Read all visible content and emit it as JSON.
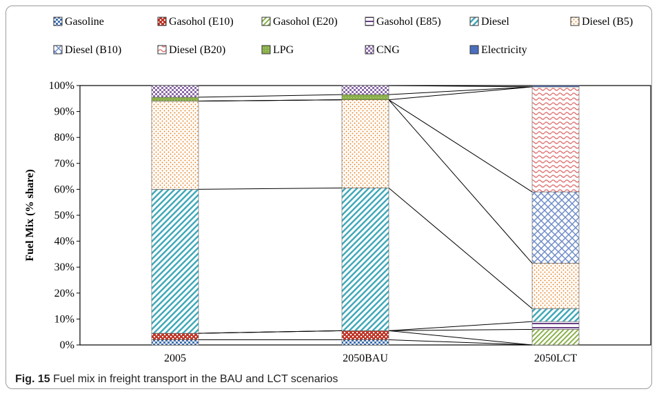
{
  "caption": {
    "fig_label": "Fig. 15",
    "text": "Fuel mix in freight transport in the BAU and LCT scenarios"
  },
  "chart_data": {
    "type": "bar",
    "stacked": true,
    "percent": true,
    "categories": [
      "2005",
      "2050BAU",
      "2050LCT"
    ],
    "ylabel": "Fuel Mix (% share)",
    "ylim": [
      0,
      100
    ],
    "yticks": [
      "0%",
      "10%",
      "20%",
      "30%",
      "40%",
      "50%",
      "60%",
      "70%",
      "80%",
      "90%",
      "100%"
    ],
    "grid": false,
    "connector_lines": true,
    "legend_position": "top",
    "series": [
      {
        "name": "Gasoline",
        "values": [
          2,
          2,
          0
        ],
        "color": "#3e6fb0",
        "pattern": "checker"
      },
      {
        "name": "Gasohol (E10)",
        "values": [
          2.5,
          3.5,
          0
        ],
        "color": "#c0392b",
        "pattern": "checker"
      },
      {
        "name": "Gasohol (E20)",
        "values": [
          0,
          0,
          6
        ],
        "color": "#8ab04a",
        "pattern": "diag"
      },
      {
        "name": "Gasohol (E85)",
        "values": [
          0,
          0,
          3
        ],
        "color": "#6b3f87",
        "pattern": "hstripe"
      },
      {
        "name": "Diesel",
        "values": [
          55.5,
          55,
          5
        ],
        "color": "#3fa8b8",
        "pattern": "diag"
      },
      {
        "name": "Diesel (B5)",
        "values": [
          34,
          34,
          17.5
        ],
        "color": "#e8872b",
        "pattern": "dots"
      },
      {
        "name": "Diesel (B10)",
        "values": [
          0,
          0,
          27.5
        ],
        "color": "#6e8cc8",
        "pattern": "weave"
      },
      {
        "name": "Diesel (B20)",
        "values": [
          0,
          0,
          40.5
        ],
        "color": "#e07878",
        "pattern": "wave"
      },
      {
        "name": "LPG",
        "values": [
          1.5,
          2,
          0
        ],
        "color": "#8ab04a",
        "pattern": "solidpat"
      },
      {
        "name": "CNG",
        "values": [
          4.5,
          3.5,
          0
        ],
        "color": "#8a6aa8",
        "pattern": "checker"
      },
      {
        "name": "Electricity",
        "values": [
          0,
          0,
          0.5
        ],
        "color": "#4a6fbf",
        "pattern": "solid"
      }
    ]
  }
}
